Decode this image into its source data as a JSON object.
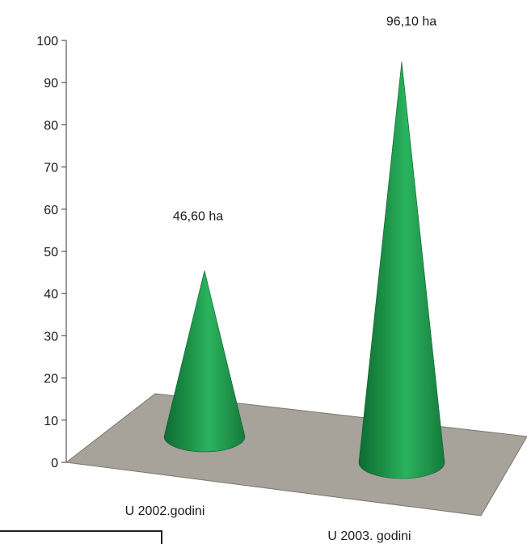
{
  "chart_data": {
    "type": "bar",
    "style": "3d-cone",
    "categories": [
      "U 2002.godini",
      "U 2003. godini"
    ],
    "values": [
      46.6,
      96.1
    ],
    "data_labels": [
      "46,60 ha",
      "96,10 ha"
    ],
    "y_ticks": [
      "0",
      "10",
      "20",
      "30",
      "40",
      "50",
      "60",
      "70",
      "80",
      "90",
      "100"
    ],
    "ylim": [
      0,
      100
    ],
    "grid": false,
    "legend": "none",
    "colors": {
      "series": "#1f9a4c",
      "floor": "#a7a29a",
      "axis": "#555555"
    }
  }
}
